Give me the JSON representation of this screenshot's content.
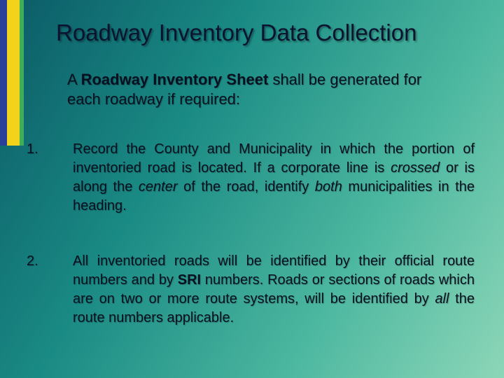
{
  "colors": {
    "bg_gradient_start": "#0b5a66",
    "bg_gradient_2": "#1a8a84",
    "bg_gradient_3": "#4db8a0",
    "bg_gradient_end": "#8dd6b8",
    "stripe_blue": "#2a3f9a",
    "stripe_yellow": "#f2d21a",
    "stripe_green": "#3fae5a",
    "text_color": "#071020"
  },
  "typography": {
    "title_fontsize": 33,
    "intro_fontsize": 22,
    "body_fontsize": 20,
    "font_family": "Verdana"
  },
  "title": "Roadway Inventory Data Collection",
  "intro": {
    "prefix": "A ",
    "bold": "Roadway Inventory Sheet",
    "rest": " shall be generated for each roadway if required:"
  },
  "items": [
    {
      "number": "1.",
      "lead": "Record the County and Municipality in which the portion of inventoried road is located. If a corporate line is ",
      "italic1": "crossed",
      "mid1": " or is along the ",
      "italic2": "center",
      "mid2": " of the road, identify ",
      "italic3": "both",
      "tail": " municipalities in the heading."
    },
    {
      "number": "2.",
      "lead": "All inventoried roads will be identified by their official route numbers and by ",
      "bold": "SRI",
      "mid1": " numbers.   Roads or sections of roads which are on two or more route systems, will be identified by ",
      "italic1": "all",
      "tail": " the route numbers applicable."
    }
  ]
}
